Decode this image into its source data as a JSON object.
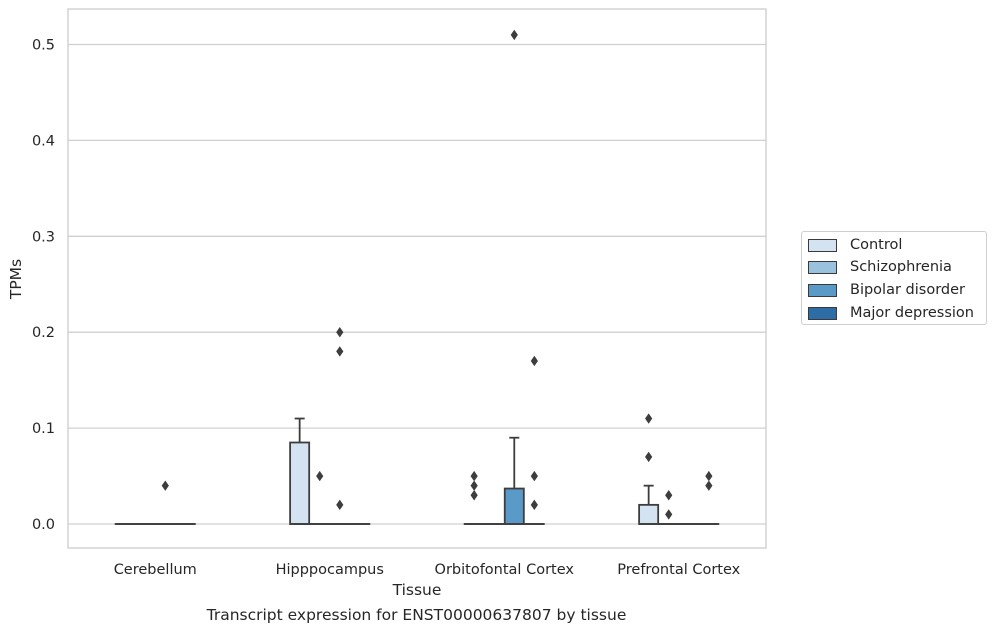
{
  "caption": "Transcript expression for ENST00000637807 by tissue",
  "chart_data": {
    "type": "boxplot",
    "xlabel": "Tissue",
    "ylabel": "TPMs",
    "ylim": [
      -0.025,
      0.537
    ],
    "yticks": [
      0.0,
      0.1,
      0.2,
      0.3,
      0.4,
      0.5
    ],
    "ytick_labels": [
      "0.0",
      "0.1",
      "0.2",
      "0.3",
      "0.4",
      "0.5"
    ],
    "grid": "horizontal",
    "legend_position": "right",
    "categories": [
      "Cerebellum",
      "Hipppocampus",
      "Orbitofontal Cortex",
      "Prefrontal Cortex"
    ],
    "series": [
      {
        "name": "Control",
        "color": "#d4e3f2",
        "boxes": [
          {
            "q1": 0,
            "median": 0,
            "q3": 0,
            "whisker_low": 0,
            "whisker_high": 0,
            "outliers": []
          },
          {
            "q1": 0,
            "median": 0,
            "q3": 0.085,
            "whisker_low": 0,
            "whisker_high": 0.11,
            "outliers": []
          },
          {
            "q1": 0,
            "median": 0,
            "q3": 0,
            "whisker_low": 0,
            "whisker_high": 0,
            "outliers": [
              0.03,
              0.04,
              0.05
            ]
          },
          {
            "q1": 0,
            "median": 0,
            "q3": 0.02,
            "whisker_low": 0,
            "whisker_high": 0.04,
            "outliers": [
              0.07,
              0.11
            ]
          }
        ]
      },
      {
        "name": "Schizophrenia",
        "color": "#9ac2de",
        "boxes": [
          {
            "q1": 0,
            "median": 0,
            "q3": 0,
            "whisker_low": 0,
            "whisker_high": 0,
            "outliers": []
          },
          {
            "q1": 0,
            "median": 0,
            "q3": 0,
            "whisker_low": 0,
            "whisker_high": 0,
            "outliers": [
              0.05
            ]
          },
          {
            "q1": 0,
            "median": 0,
            "q3": 0,
            "whisker_low": 0,
            "whisker_high": 0,
            "outliers": []
          },
          {
            "q1": 0,
            "median": 0,
            "q3": 0,
            "whisker_low": 0,
            "whisker_high": 0,
            "outliers": [
              0.01,
              0.03
            ]
          }
        ]
      },
      {
        "name": "Bipolar disorder",
        "color": "#5a9ac8",
        "boxes": [
          {
            "q1": 0,
            "median": 0,
            "q3": 0,
            "whisker_low": 0,
            "whisker_high": 0,
            "outliers": [
              0.04
            ]
          },
          {
            "q1": 0,
            "median": 0,
            "q3": 0,
            "whisker_low": 0,
            "whisker_high": 0,
            "outliers": [
              0.02,
              0.18,
              0.2
            ]
          },
          {
            "q1": 0,
            "median": 0,
            "q3": 0.037,
            "whisker_low": 0,
            "whisker_high": 0.09,
            "outliers": [
              0.51
            ]
          },
          {
            "q1": 0,
            "median": 0,
            "q3": 0,
            "whisker_low": 0,
            "whisker_high": 0,
            "outliers": []
          }
        ]
      },
      {
        "name": "Major depression",
        "color": "#2e6ca6",
        "boxes": [
          {
            "q1": 0,
            "median": 0,
            "q3": 0,
            "whisker_low": 0,
            "whisker_high": 0,
            "outliers": []
          },
          {
            "q1": 0,
            "median": 0,
            "q3": 0,
            "whisker_low": 0,
            "whisker_high": 0,
            "outliers": []
          },
          {
            "q1": 0,
            "median": 0,
            "q3": 0,
            "whisker_low": 0,
            "whisker_high": 0,
            "outliers": [
              0.02,
              0.05,
              0.17
            ]
          },
          {
            "q1": 0,
            "median": 0,
            "q3": 0,
            "whisker_low": 0,
            "whisker_high": 0,
            "outliers": [
              0.04,
              0.05
            ]
          }
        ]
      }
    ]
  }
}
